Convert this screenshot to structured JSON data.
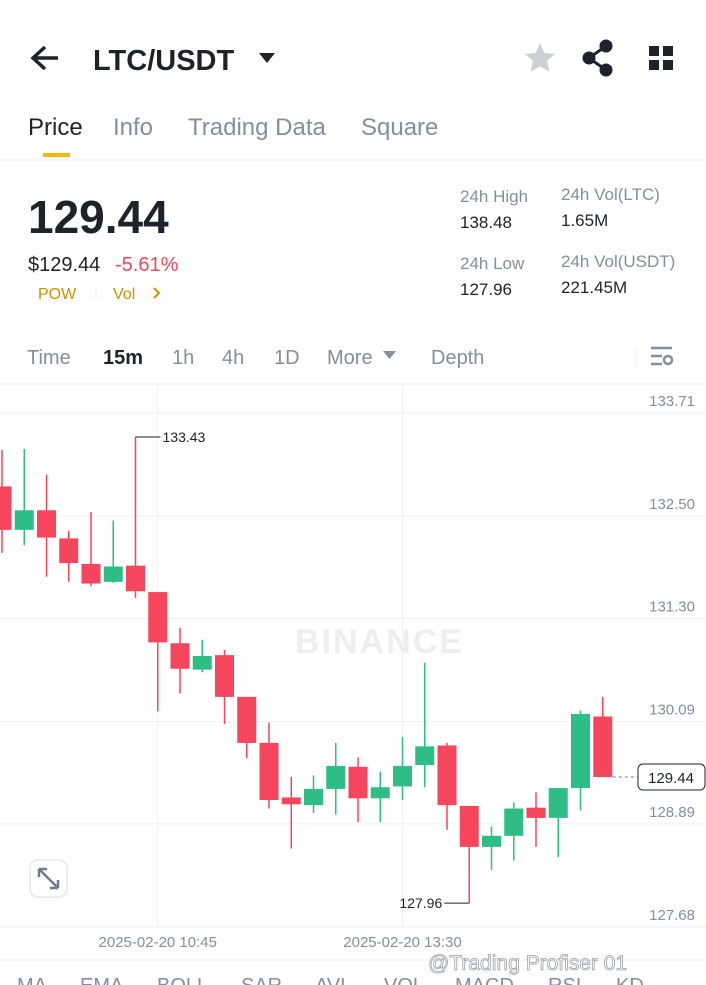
{
  "header": {
    "pair": "LTC/USDT"
  },
  "tabs": [
    "Price",
    "Info",
    "Trading Data",
    "Square"
  ],
  "price": {
    "last": "129.44",
    "usd": "$129.44",
    "change": "-5.61%",
    "tags": [
      "POW",
      "Vol"
    ]
  },
  "stats": [
    {
      "label": "24h High",
      "value": "138.48"
    },
    {
      "label": "24h Vol(LTC)",
      "value": "1.65M"
    },
    {
      "label": "24h Low",
      "value": "127.96"
    },
    {
      "label": "24h Vol(USDT)",
      "value": "221.45M"
    }
  ],
  "intervals": [
    "Time",
    "15m",
    "1h",
    "4h",
    "1D",
    "More",
    "Depth"
  ],
  "chart_data": {
    "type": "candlestick",
    "categories": [
      null,
      null,
      null,
      null,
      null,
      null,
      null,
      "2025-02-20 10:45",
      null,
      null,
      null,
      null,
      null,
      null,
      null,
      null,
      null,
      null,
      "2025-02-20 13:30",
      null,
      null,
      null,
      null,
      null,
      null,
      null,
      null,
      null
    ],
    "open": [
      132.85,
      132.34,
      132.57,
      132.24,
      131.94,
      131.73,
      131.92,
      131.61,
      131.01,
      130.7,
      130.87,
      130.38,
      129.84,
      129.2,
      129.11,
      129.3,
      129.56,
      129.19,
      129.33,
      129.58,
      129.81,
      129.1,
      128.62,
      128.75,
      129.08,
      128.96,
      129.31,
      130.15
    ],
    "high": [
      133.28,
      133.29,
      132.99,
      132.33,
      132.55,
      132.45,
      133.43,
      131.61,
      131.19,
      131.05,
      130.93,
      130.38,
      130.08,
      129.44,
      129.46,
      129.84,
      129.67,
      129.5,
      129.91,
      130.78,
      129.84,
      129.1,
      128.86,
      129.14,
      129.26,
      129.31,
      130.22,
      130.38
    ],
    "low": [
      132.07,
      132.16,
      131.79,
      131.73,
      131.68,
      131.72,
      131.54,
      130.21,
      130.42,
      130.67,
      130.06,
      129.66,
      129.07,
      128.6,
      129.02,
      129.0,
      128.91,
      128.91,
      129.17,
      129.32,
      128.82,
      127.96,
      128.35,
      128.46,
      128.62,
      128.5,
      129.05,
      129.44
    ],
    "close": [
      132.34,
      132.57,
      132.25,
      131.95,
      131.71,
      131.91,
      131.62,
      131.02,
      130.71,
      130.86,
      130.38,
      129.84,
      129.17,
      129.12,
      129.3,
      129.57,
      129.19,
      129.32,
      129.57,
      129.8,
      129.11,
      128.62,
      128.75,
      129.07,
      128.96,
      129.31,
      130.18,
      129.44
    ],
    "up_color": "#2ebd85",
    "down_color": "#f6465d",
    "ylim": [
      127.68,
      134.04
    ],
    "yticks": [
      133.71,
      {
        "value": 132.5,
        "label": "132.50"
      },
      {
        "value": 131.3,
        "label": "131.30"
      },
      130.09,
      128.89,
      127.68
    ],
    "grid": true,
    "annotations": [
      {
        "text": "133.43",
        "value": 133.43,
        "index": 6
      },
      {
        "text": "127.96",
        "value": 127.96,
        "index": 21
      }
    ],
    "current": {
      "label": "129.44",
      "value": 129.44
    },
    "watermark": "BINANCE"
  },
  "indicators": [
    "MA",
    "EMA",
    "BOLL",
    "SAR",
    "AVL",
    "VOL",
    "MACD",
    "RSI",
    "KD"
  ],
  "overlay": "@Trading Profiser 01"
}
